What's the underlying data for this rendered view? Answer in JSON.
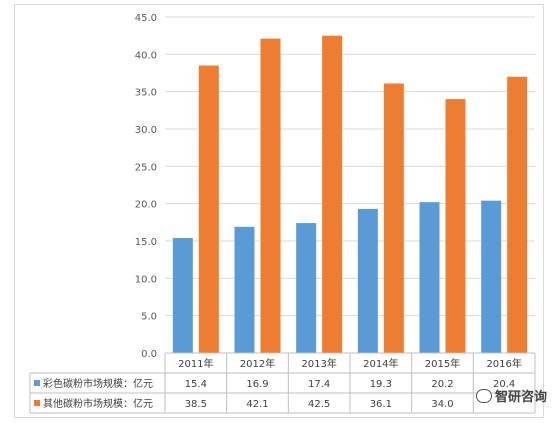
{
  "chart_data": {
    "type": "bar",
    "categories": [
      "2011年",
      "2012年",
      "2013年",
      "2014年",
      "2015年",
      "2016年"
    ],
    "series": [
      {
        "name": "彩色碳粉市场规模：亿元",
        "values": [
          15.4,
          16.9,
          17.4,
          19.3,
          20.2,
          20.4
        ],
        "value_labels": [
          "15.4",
          "16.9",
          "17.4",
          "19.3",
          "20.2",
          "20.4"
        ],
        "color": "#5B9BD5"
      },
      {
        "name": "其他碳粉市场规模：亿元",
        "values": [
          38.5,
          42.1,
          42.5,
          36.1,
          34.0,
          37.0
        ],
        "value_labels": [
          "38.5",
          "42.1",
          "42.5",
          "36.1",
          "34.0",
          ""
        ],
        "color": "#ED7D31"
      }
    ],
    "yticks": [
      "0.0",
      "5.0",
      "10.0",
      "15.0",
      "20.0",
      "25.0",
      "30.0",
      "35.0",
      "40.0",
      "45.0"
    ],
    "ylim": [
      0,
      45
    ],
    "grid": true,
    "legend": "data-table-below"
  },
  "watermark": {
    "text": "智研咨询"
  }
}
